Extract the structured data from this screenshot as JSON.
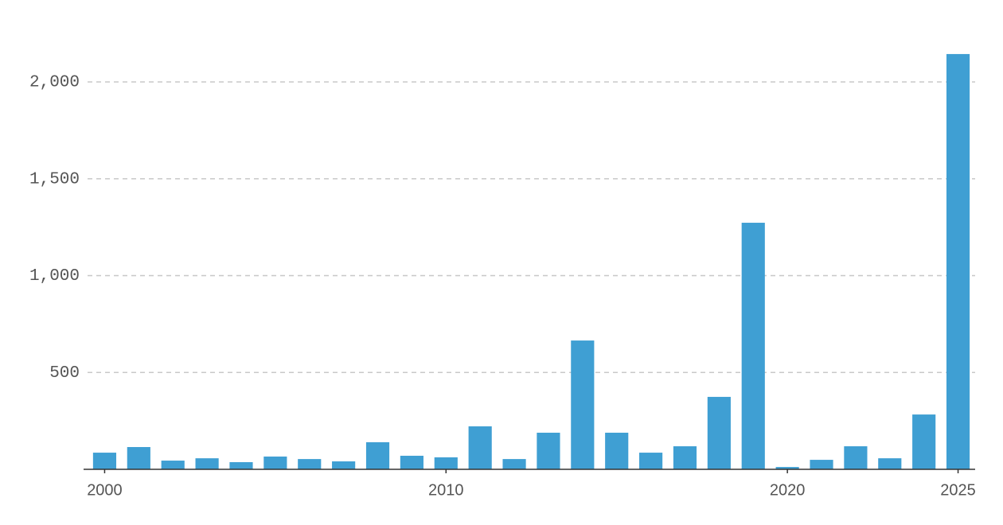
{
  "chart_data": {
    "type": "bar",
    "x": [
      2000,
      2001,
      2002,
      2003,
      2004,
      2005,
      2006,
      2007,
      2008,
      2009,
      2010,
      2011,
      2012,
      2013,
      2014,
      2015,
      2016,
      2017,
      2018,
      2019,
      2020,
      2021,
      2022,
      2023,
      2024,
      2025
    ],
    "values": [
      86,
      115,
      45,
      57,
      37,
      66,
      53,
      41,
      140,
      70,
      62,
      222,
      53,
      189,
      665,
      189,
      86,
      119,
      374,
      1273,
      12,
      49,
      119,
      57,
      283,
      2144
    ],
    "color": "#3f9fd3",
    "xlim": [
      1999.5,
      2025.5
    ],
    "xticks": [
      2000,
      2010,
      2020,
      2025
    ],
    "ylim": [
      0,
      2200
    ],
    "yticks": [
      500,
      {
        "value": 1000,
        "label": "1,000"
      },
      {
        "value": 1500,
        "label": "1,500"
      },
      {
        "value": 2000,
        "label": "2,000"
      }
    ],
    "grid": true
  }
}
